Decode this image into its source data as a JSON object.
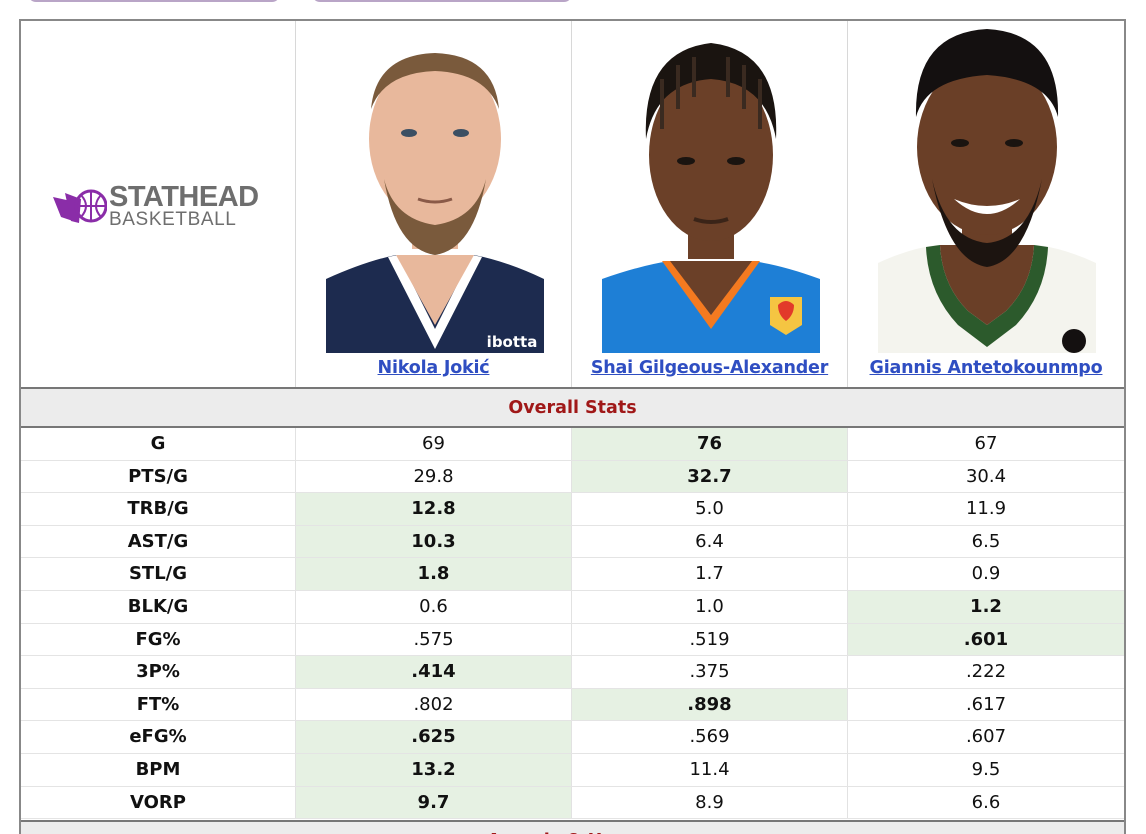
{
  "logo": {
    "main": "STATHEAD",
    "sub": "BASKETBALL",
    "accent": "#8a2da8"
  },
  "players": [
    {
      "name": "Nikola Jokić",
      "jersey": "#1d2b4f",
      "trim": "#ffffff",
      "skin": "#e8b89c",
      "hair": "#7a5a3c"
    },
    {
      "name": "Shai Gilgeous-Alexander",
      "jersey": "#1e7fd6",
      "trim": "#f47a20",
      "skin": "#6b4028",
      "hair": "#1a1410"
    },
    {
      "name": "Giannis Antetokounmpo",
      "jersey": "#f4f4ee",
      "trim": "#2c5a2c",
      "skin": "#6a3f27",
      "hair": "#141010"
    }
  ],
  "section_title": "Overall Stats",
  "next_section_title": "Awards & Honors",
  "stats": [
    {
      "label": "G",
      "values": [
        "69",
        "76",
        "67"
      ],
      "best": 1
    },
    {
      "label": "PTS/G",
      "values": [
        "29.8",
        "32.7",
        "30.4"
      ],
      "best": 1
    },
    {
      "label": "TRB/G",
      "values": [
        "12.8",
        "5.0",
        "11.9"
      ],
      "best": 0
    },
    {
      "label": "AST/G",
      "values": [
        "10.3",
        "6.4",
        "6.5"
      ],
      "best": 0
    },
    {
      "label": "STL/G",
      "values": [
        "1.8",
        "1.7",
        "0.9"
      ],
      "best": 0
    },
    {
      "label": "BLK/G",
      "values": [
        "0.6",
        "1.0",
        "1.2"
      ],
      "best": 2
    },
    {
      "label": "FG%",
      "values": [
        ".575",
        ".519",
        ".601"
      ],
      "best": 2
    },
    {
      "label": "3P%",
      "values": [
        ".414",
        ".375",
        ".222"
      ],
      "best": 0
    },
    {
      "label": "FT%",
      "values": [
        ".802",
        ".898",
        ".617"
      ],
      "best": 1
    },
    {
      "label": "eFG%",
      "values": [
        ".625",
        ".569",
        ".607"
      ],
      "best": 0
    },
    {
      "label": "BPM",
      "values": [
        "13.2",
        "11.4",
        "9.5"
      ],
      "best": 0
    },
    {
      "label": "VORP",
      "values": [
        "9.7",
        "8.9",
        "6.6"
      ],
      "best": 0
    }
  ]
}
